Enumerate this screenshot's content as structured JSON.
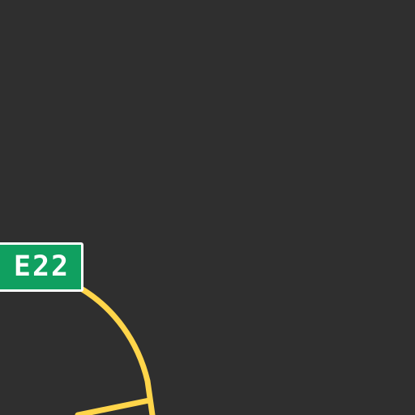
{
  "map": {
    "background_color": "#2f2f2f",
    "road_color": "#ffd54a",
    "shield": {
      "label": "E22",
      "fill_color": "#10a060",
      "border_color": "#ffffff",
      "text_color": "#ffffff"
    }
  }
}
